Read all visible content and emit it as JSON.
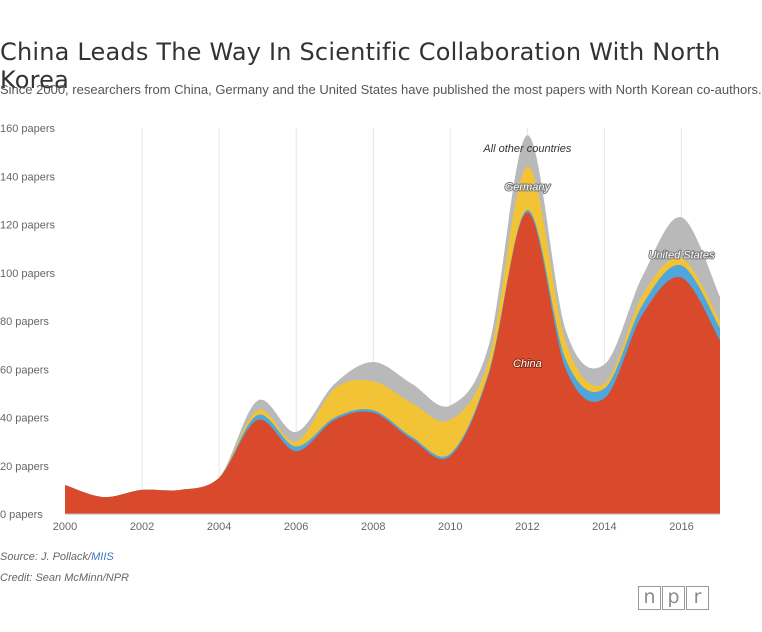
{
  "header": {
    "title": "China Leads The Way In Scientific Collaboration With North Korea",
    "subtitle": "Since 2000, researchers from China, Germany and the United States have published the most papers with North Korean co-authors."
  },
  "footer": {
    "source_prefix": "Source: J. Pollack/",
    "source_link": "MIIS",
    "credit": "Credit: Sean McMinn/NPR"
  },
  "logo": {
    "letters": [
      "n",
      "p",
      "r"
    ]
  },
  "chart_data": {
    "type": "area",
    "stacked": true,
    "x": [
      2000,
      2001,
      2002,
      2003,
      2004,
      2005,
      2006,
      2007,
      2008,
      2009,
      2010,
      2011,
      2012,
      2013,
      2014,
      2015,
      2016,
      2017
    ],
    "xticks": [
      2000,
      2002,
      2004,
      2006,
      2008,
      2010,
      2012,
      2014,
      2016
    ],
    "xtick_labels": [
      "2000",
      "2002",
      "2004",
      "2006",
      "2008",
      "2010",
      "2012",
      "2014",
      "2016"
    ],
    "xlim": [
      2000,
      2017
    ],
    "ylim": [
      0,
      160
    ],
    "yticks": [
      0,
      20,
      40,
      60,
      80,
      100,
      120,
      140,
      160
    ],
    "ytick_labels": [
      "0 papers",
      "20 papers",
      "40 papers",
      "60 papers",
      "80 papers",
      "100 papers",
      "120 papers",
      "140 papers",
      "160 papers"
    ],
    "grid": "vertical",
    "series": [
      {
        "name": "China",
        "color": "#d84a2b",
        "values": [
          12,
          7,
          10,
          10,
          15,
          39,
          26,
          39,
          42,
          31,
          24,
          58,
          125,
          60,
          48,
          83,
          98,
          72
        ]
      },
      {
        "name": "United States",
        "color": "#4ea6dc",
        "values": [
          0,
          0,
          0,
          0,
          0,
          2,
          2,
          1,
          1,
          1,
          1,
          1,
          1,
          4,
          4,
          4,
          5,
          5
        ]
      },
      {
        "name": "Germany",
        "color": "#f2c435",
        "values": [
          0,
          0,
          0,
          0,
          0,
          2,
          2,
          12,
          12,
          14,
          14,
          5,
          18,
          7,
          2,
          4,
          3,
          3
        ]
      },
      {
        "name": "All other countries",
        "color": "#b9b9b9",
        "values": [
          0,
          0,
          0,
          0,
          0,
          4,
          4,
          2,
          8,
          8,
          6,
          6,
          13,
          5,
          8,
          8,
          17,
          10
        ]
      }
    ],
    "annotations": [
      {
        "text": "All other countries",
        "x": 2012,
        "y": 150,
        "color": "#333333"
      },
      {
        "text": "Germany",
        "x": 2012,
        "y": 134,
        "color": "#ffffff",
        "halo": "#777777"
      },
      {
        "text": "United States",
        "x": 2016,
        "y": 106,
        "color": "#ffffff",
        "halo": "#777777"
      },
      {
        "text": "China",
        "x": 2012,
        "y": 61,
        "color": "#ffffff",
        "halo": "#8a2a15"
      }
    ]
  }
}
